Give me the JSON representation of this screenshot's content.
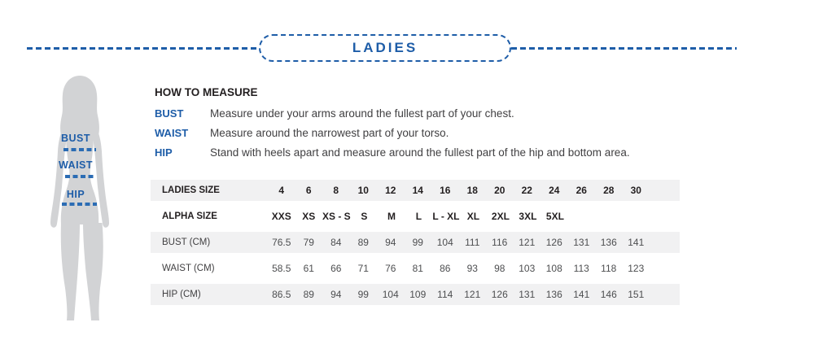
{
  "colors": {
    "accent_blue": "#1e5da8",
    "dash_blue": "#2b6cb4",
    "heading_black": "#231f20",
    "body_text": "#414042",
    "value_text": "#4d4e50",
    "stripe_gray": "#f1f1f2",
    "silhouette_gray": "#d2d3d5"
  },
  "header": {
    "title": "LADIES"
  },
  "figure": {
    "labels": {
      "bust": "BUST",
      "waist": "WAIST",
      "hip": "HIP"
    }
  },
  "how_to_measure": {
    "title": "HOW TO MEASURE",
    "items": [
      {
        "term": "BUST",
        "description": "Measure under your arms around the fullest part of your chest."
      },
      {
        "term": "WAIST",
        "description": "Measure around the narrowest part of your torso."
      },
      {
        "term": "HIP",
        "description": "Stand with heels apart and measure around the fullest part of the hip and bottom area."
      }
    ]
  },
  "size_table": {
    "rows": [
      {
        "label": "LADIES SIZE",
        "header": true,
        "values": [
          "4",
          "6",
          "8",
          "10",
          "12",
          "14",
          "16",
          "18",
          "20",
          "22",
          "24",
          "26",
          "28",
          "30"
        ]
      },
      {
        "label": "ALPHA SIZE",
        "header": true,
        "values": [
          "XXS",
          "XS",
          "XS - S",
          "S",
          "M",
          "L",
          "L - XL",
          "XL",
          "2XL",
          "3XL",
          "5XL",
          "",
          "",
          ""
        ]
      },
      {
        "label": "BUST (CM)",
        "header": false,
        "values": [
          "76.5",
          "79",
          "84",
          "89",
          "94",
          "99",
          "104",
          "111",
          "116",
          "121",
          "126",
          "131",
          "136",
          "141"
        ]
      },
      {
        "label": "WAIST (CM)",
        "header": false,
        "values": [
          "58.5",
          "61",
          "66",
          "71",
          "76",
          "81",
          "86",
          "93",
          "98",
          "103",
          "108",
          "113",
          "118",
          "123"
        ]
      },
      {
        "label": "HIP (CM)",
        "header": false,
        "values": [
          "86.5",
          "89",
          "94",
          "99",
          "104",
          "109",
          "114",
          "121",
          "126",
          "131",
          "136",
          "141",
          "146",
          "151"
        ]
      }
    ]
  }
}
